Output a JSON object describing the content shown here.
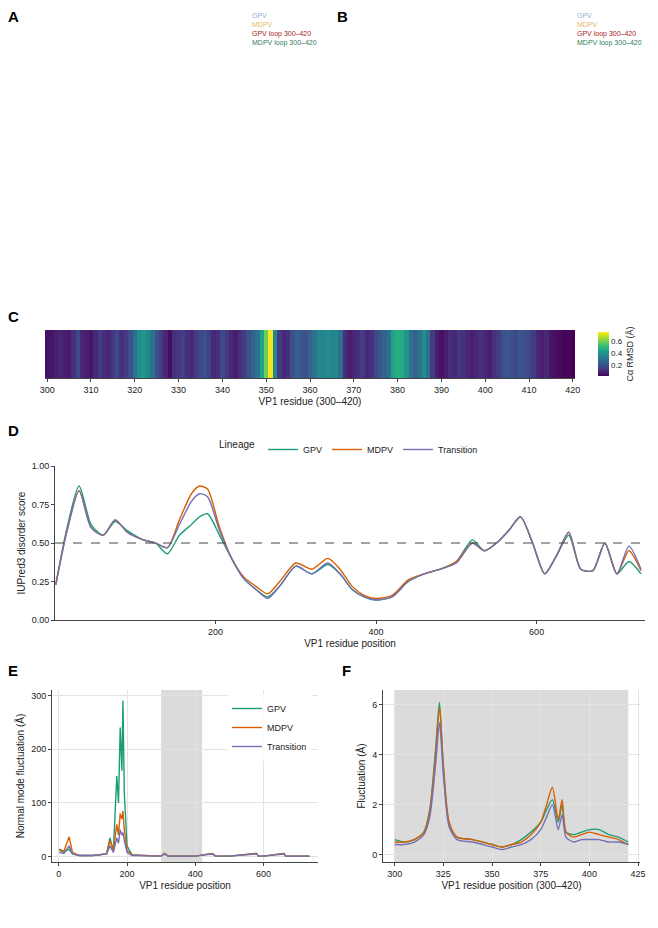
{
  "chart_data": [
    {
      "type": "structure",
      "label": "A",
      "annotations": [
        {
          "text": "GPV",
          "color": "#8fb0d0"
        },
        {
          "text": "MDPV",
          "color": "#e3b868"
        },
        {
          "text": "GPV loop 300–420",
          "color": "#a51c1c"
        },
        {
          "text": "MDPV loop 300–420",
          "color": "#2e7d5b"
        }
      ]
    },
    {
      "type": "structure",
      "label": "B",
      "annotations": [
        {
          "text": "GPV",
          "color": "#8fb0d0"
        },
        {
          "text": "MDPV",
          "color": "#e3b868"
        },
        {
          "text": "GPV loop 300–420",
          "color": "#a51c1c"
        },
        {
          "text": "MDPV loop 300–420",
          "color": "#2e7d5b"
        }
      ]
    },
    {
      "type": "heatmap",
      "label": "C",
      "x_label": "VP1 residue (300–420)",
      "x": [
        300,
        301,
        302,
        303,
        304,
        305,
        306,
        307,
        308,
        309,
        310,
        311,
        312,
        313,
        314,
        315,
        316,
        317,
        318,
        319,
        320,
        321,
        322,
        323,
        324,
        325,
        326,
        327,
        328,
        329,
        330,
        331,
        332,
        333,
        334,
        335,
        336,
        337,
        338,
        339,
        340,
        341,
        342,
        343,
        344,
        345,
        346,
        347,
        348,
        349,
        350,
        351,
        352,
        353,
        354,
        355,
        356,
        357,
        358,
        359,
        360,
        361,
        362,
        363,
        364,
        365,
        366,
        367,
        368,
        369,
        370,
        371,
        372,
        373,
        374,
        375,
        376,
        377,
        378,
        379,
        380,
        381,
        382,
        383,
        384,
        385,
        386,
        387,
        388,
        389,
        390,
        391,
        392,
        393,
        394,
        395,
        396,
        397,
        398,
        399,
        400,
        401,
        402,
        403,
        404,
        405,
        406,
        407,
        408,
        409,
        410,
        411,
        412,
        413,
        414,
        415,
        416,
        417,
        418,
        419,
        420
      ],
      "values": [
        0.05,
        0.06,
        0.08,
        0.1,
        0.08,
        0.07,
        0.12,
        0.18,
        0.1,
        0.08,
        0.06,
        0.1,
        0.15,
        0.12,
        0.1,
        0.14,
        0.18,
        0.12,
        0.15,
        0.2,
        0.3,
        0.38,
        0.4,
        0.36,
        0.3,
        0.2,
        0.15,
        0.1,
        0.04,
        0.12,
        0.14,
        0.16,
        0.12,
        0.1,
        0.15,
        0.18,
        0.2,
        0.16,
        0.1,
        0.12,
        0.18,
        0.14,
        0.1,
        0.08,
        0.12,
        0.15,
        0.2,
        0.25,
        0.3,
        0.45,
        0.6,
        0.75,
        0.35,
        0.15,
        0.1,
        0.12,
        0.2,
        0.25,
        0.22,
        0.2,
        0.25,
        0.3,
        0.35,
        0.35,
        0.38,
        0.35,
        0.36,
        0.3,
        0.12,
        0.08,
        0.1,
        0.12,
        0.15,
        0.1,
        0.12,
        0.18,
        0.22,
        0.25,
        0.3,
        0.45,
        0.48,
        0.46,
        0.4,
        0.3,
        0.25,
        0.3,
        0.38,
        0.3,
        0.15,
        0.08,
        0.05,
        0.08,
        0.12,
        0.1,
        0.14,
        0.12,
        0.1,
        0.08,
        0.1,
        0.12,
        0.1,
        0.08,
        0.12,
        0.15,
        0.2,
        0.22,
        0.2,
        0.18,
        0.22,
        0.2,
        0.18,
        0.15,
        0.1,
        0.08,
        0.1,
        0.06,
        0.05,
        0.04,
        0.03,
        0.03,
        0.02
      ],
      "xlim": [
        299.5,
        420.5
      ],
      "xticks": [
        300,
        310,
        320,
        330,
        340,
        350,
        360,
        370,
        380,
        390,
        400,
        410,
        420
      ],
      "colorbar_title": "Cα RMSD (Å)",
      "zlim": [
        0.02,
        0.76
      ],
      "zticks": [
        0.2,
        0.4,
        0.6
      ],
      "color": "Viridis",
      "tick_labels": "x",
      "grid": false
    },
    {
      "type": "line",
      "label": "D",
      "x_label": "VP1 residue position",
      "y_label": "IUPred3 disorder score",
      "legend_title": "Lineage",
      "legend": "top",
      "grid": false,
      "hline": 0.5,
      "x": [
        1,
        15,
        30,
        45,
        60,
        75,
        90,
        110,
        125,
        140,
        155,
        170,
        180,
        190,
        205,
        220,
        235,
        250,
        265,
        280,
        300,
        320,
        340,
        355,
        370,
        385,
        400,
        420,
        440,
        460,
        480,
        500,
        520,
        535,
        550,
        565,
        580,
        595,
        610,
        625,
        640,
        655,
        670,
        685,
        700,
        715,
        730
      ],
      "series": [
        {
          "name": "GPV",
          "color": "#1b9e77",
          "values": [
            0.23,
            0.6,
            0.87,
            0.62,
            0.55,
            0.64,
            0.58,
            0.52,
            0.5,
            0.43,
            0.55,
            0.62,
            0.67,
            0.69,
            0.55,
            0.4,
            0.27,
            0.2,
            0.15,
            0.22,
            0.35,
            0.3,
            0.36,
            0.3,
            0.2,
            0.15,
            0.13,
            0.15,
            0.25,
            0.3,
            0.33,
            0.38,
            0.52,
            0.45,
            0.5,
            0.58,
            0.67,
            0.5,
            0.3,
            0.42,
            0.55,
            0.33,
            0.32,
            0.5,
            0.3,
            0.38,
            0.3
          ]
        },
        {
          "name": "MDPV",
          "color": "#d95f02",
          "values": [
            0.23,
            0.58,
            0.84,
            0.6,
            0.55,
            0.65,
            0.57,
            0.52,
            0.5,
            0.47,
            0.65,
            0.82,
            0.87,
            0.85,
            0.6,
            0.4,
            0.28,
            0.22,
            0.17,
            0.25,
            0.37,
            0.33,
            0.4,
            0.33,
            0.22,
            0.16,
            0.14,
            0.16,
            0.26,
            0.3,
            0.33,
            0.38,
            0.5,
            0.45,
            0.5,
            0.58,
            0.67,
            0.5,
            0.3,
            0.42,
            0.57,
            0.33,
            0.32,
            0.5,
            0.3,
            0.45,
            0.32
          ]
        },
        {
          "name": "Transition",
          "color": "#7570b3",
          "values": [
            0.23,
            0.58,
            0.84,
            0.6,
            0.55,
            0.65,
            0.57,
            0.52,
            0.5,
            0.47,
            0.62,
            0.77,
            0.82,
            0.8,
            0.58,
            0.4,
            0.27,
            0.2,
            0.14,
            0.22,
            0.35,
            0.3,
            0.37,
            0.3,
            0.2,
            0.15,
            0.13,
            0.15,
            0.25,
            0.3,
            0.33,
            0.37,
            0.5,
            0.45,
            0.5,
            0.58,
            0.67,
            0.5,
            0.3,
            0.42,
            0.57,
            0.33,
            0.32,
            0.5,
            0.3,
            0.48,
            0.33
          ]
        }
      ],
      "xlim": [
        0,
        735
      ],
      "xticks": [
        200,
        400,
        600
      ],
      "ylim": [
        0,
        1
      ],
      "yticks": [
        {
          "value": 0,
          "label": "0.00"
        },
        {
          "value": 0.25,
          "label": "0.25"
        },
        {
          "value": 0.5,
          "label": "0.50"
        },
        {
          "value": 0.75,
          "label": "0.75"
        },
        {
          "value": 1,
          "label": "1.00"
        }
      ]
    },
    {
      "type": "line",
      "label": "E",
      "x_label": "VP1 residue position",
      "y_label": "Normal mode fluctuation (Å)",
      "legend": "top right",
      "grid": true,
      "shaded": [
        300,
        420
      ],
      "x": [
        1,
        15,
        30,
        40,
        60,
        100,
        140,
        150,
        160,
        170,
        175,
        180,
        185,
        188,
        192,
        200,
        215,
        250,
        300,
        310,
        320,
        400,
        450,
        460,
        500,
        580,
        585,
        600,
        660,
        665,
        700,
        735
      ],
      "series": [
        {
          "name": "GPV",
          "color": "#1b9e77",
          "values": [
            12,
            8,
            14,
            5,
            2,
            2,
            5,
            35,
            10,
            150,
            100,
            240,
            160,
            290,
            120,
            20,
            3,
            2,
            1,
            6,
            1,
            1,
            6,
            1,
            1,
            6,
            1,
            1,
            6,
            1,
            1,
            1
          ]
        },
        {
          "name": "MDPV",
          "color": "#d95f02",
          "values": [
            14,
            10,
            37,
            8,
            2,
            2,
            5,
            30,
            12,
            60,
            40,
            80,
            70,
            85,
            50,
            12,
            3,
            2,
            1,
            6,
            1,
            1,
            6,
            1,
            1,
            6,
            1,
            1,
            6,
            1,
            1,
            1
          ]
        },
        {
          "name": "Transition",
          "color": "#7570b3",
          "values": [
            8,
            6,
            20,
            5,
            2,
            2,
            5,
            20,
            8,
            35,
            25,
            50,
            40,
            45,
            30,
            8,
            2,
            2,
            1,
            5,
            1,
            1,
            5,
            1,
            1,
            5,
            1,
            1,
            5,
            1,
            1,
            1
          ]
        }
      ],
      "xlim": [
        -20,
        760
      ],
      "xticks": [
        0,
        200,
        400,
        600
      ],
      "ylim": [
        -10,
        310
      ],
      "yticks": [
        0,
        100,
        200,
        300
      ]
    },
    {
      "type": "line",
      "label": "F",
      "x_label": "VP1 residue position (300–420)",
      "y_label": "Fluctuation (Å)",
      "grid": true,
      "shaded": [
        300,
        420
      ],
      "x": [
        300,
        305,
        310,
        315,
        318,
        321,
        323,
        325,
        328,
        332,
        340,
        350,
        355,
        360,
        365,
        370,
        375,
        378,
        381,
        384,
        386,
        388,
        392,
        396,
        400,
        405,
        410,
        415,
        420
      ],
      "series": [
        {
          "color": "#1b9e77",
          "values": [
            0.6,
            0.5,
            0.6,
            0.9,
            1.8,
            4.2,
            6.1,
            3.5,
            1.2,
            0.7,
            0.6,
            0.4,
            0.3,
            0.4,
            0.6,
            0.9,
            1.3,
            1.8,
            2.2,
            1.3,
            2.0,
            0.9,
            0.8,
            0.9,
            1.0,
            1.0,
            0.8,
            0.7,
            0.5
          ]
        },
        {
          "color": "#d95f02",
          "values": [
            0.5,
            0.5,
            0.6,
            0.9,
            1.7,
            4.0,
            5.9,
            3.6,
            1.3,
            0.7,
            0.6,
            0.4,
            0.3,
            0.4,
            0.5,
            0.8,
            1.3,
            2.0,
            2.7,
            1.4,
            2.2,
            0.9,
            0.7,
            0.8,
            0.9,
            0.8,
            0.7,
            0.6,
            0.4
          ]
        },
        {
          "color": "#7570b3",
          "values": [
            0.4,
            0.4,
            0.5,
            0.8,
            1.5,
            3.6,
            5.3,
            3.2,
            1.1,
            0.6,
            0.5,
            0.3,
            0.2,
            0.3,
            0.4,
            0.6,
            1.0,
            1.5,
            2.0,
            1.0,
            1.6,
            0.7,
            0.5,
            0.6,
            0.6,
            0.6,
            0.5,
            0.5,
            0.4
          ]
        }
      ],
      "xlim": [
        294,
        426
      ],
      "xticks": [
        300,
        325,
        350,
        375,
        400,
        425
      ],
      "ylim": [
        -0.3,
        6.6
      ],
      "yticks": [
        0,
        2,
        4,
        6
      ]
    }
  ]
}
